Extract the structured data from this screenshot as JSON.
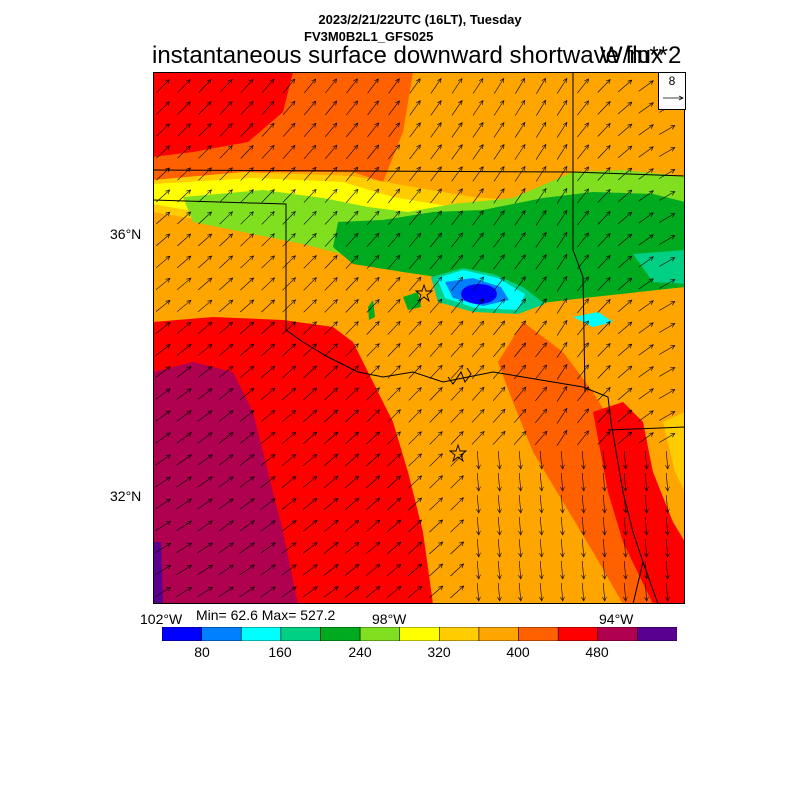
{
  "header": {
    "line1": "2023/2/21/22UTC (16LT), Tuesday",
    "line2": "FV3M0B2L1_GFS025",
    "title": "instantaneous surface downward shortwave flux",
    "units": "W/m**2"
  },
  "reference_vector": {
    "value": "8"
  },
  "map": {
    "lat_labels": [
      "36°N",
      "32°N"
    ],
    "lon_labels": [
      "102°W",
      "98°W",
      "94°W"
    ],
    "markers": [
      "star",
      "star"
    ]
  },
  "stats": {
    "text": "Min= 62.6 Max= 527.2"
  },
  "colorbar": {
    "colors": [
      "#0000ff",
      "#0080ff",
      "#00ffff",
      "#00d084",
      "#00aa1e",
      "#80e020",
      "#ffff00",
      "#ffcc00",
      "#ffa500",
      "#ff6000",
      "#ff0000",
      "#b00050",
      "#5a0090"
    ],
    "tick_labels": [
      "80",
      "160",
      "240",
      "320",
      "400",
      "480"
    ]
  }
}
